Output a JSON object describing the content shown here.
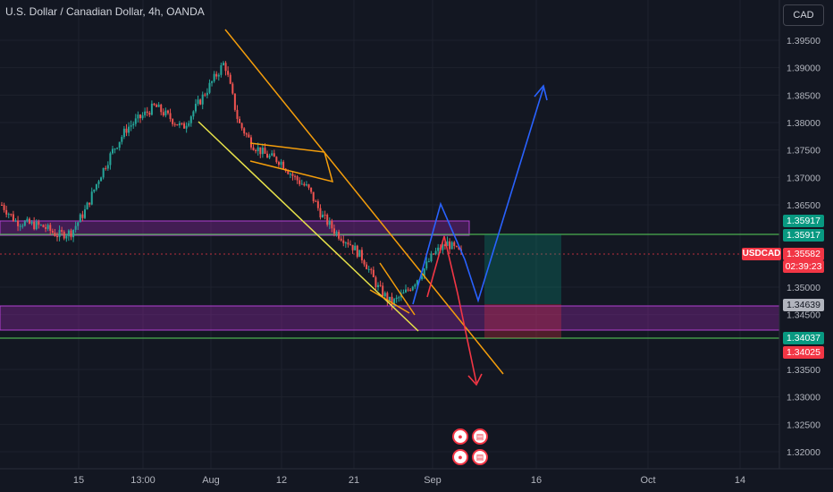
{
  "header": {
    "title": "U.S. Dollar / Canadian Dollar, 4h, OANDA",
    "currency_button": "CAD"
  },
  "symbol_badge": "USDCAD",
  "price_badges": [
    {
      "price": "1.35917",
      "bg": "#089981",
      "fg": "#ffffff"
    },
    {
      "price": "1.35917",
      "bg": "#089981",
      "fg": "#ffffff"
    },
    {
      "price": "1.35582",
      "bg": "#f23645",
      "fg": "#ffffff"
    },
    {
      "price": "02:39:23",
      "bg": "#f23645",
      "fg": "#ffffff"
    },
    {
      "price": "1.34639",
      "bg": "#b2b5be",
      "fg": "#131722"
    },
    {
      "price": "1.34037",
      "bg": "#089981",
      "fg": "#ffffff"
    },
    {
      "price": "1.34025",
      "bg": "#f23645",
      "fg": "#ffffff"
    }
  ],
  "event_icons": [
    "ca-flag-icon",
    "us-flag-icon",
    "ca-flag-icon",
    "us-flag-icon"
  ],
  "chart_data": {
    "type": "line",
    "title": "U.S. Dollar / Canadian Dollar, 4h, OANDA",
    "y_ticks": [
      "1.39500",
      "1.39000",
      "1.38500",
      "1.38000",
      "1.37500",
      "1.37000",
      "1.36500",
      "1.35000",
      "1.34500",
      "1.33500",
      "1.33000",
      "1.32500",
      "1.32000"
    ],
    "x_ticks": [
      "15",
      "13:00",
      "Aug",
      "12",
      "21",
      "Sep",
      "16",
      "Oct",
      "14"
    ],
    "ylim": [
      1.3185,
      1.3985
    ],
    "series": [
      {
        "values": [
          1.365,
          1.362,
          1.3615,
          1.361,
          1.3595,
          1.36,
          1.364,
          1.37,
          1.375,
          1.379,
          1.381,
          1.383,
          1.381,
          1.379,
          1.383,
          1.387,
          1.391,
          1.38,
          1.376,
          1.374,
          1.373,
          1.37,
          1.368,
          1.363,
          1.36,
          1.358,
          1.355,
          1.35,
          1.347,
          1.349,
          1.352,
          1.356,
          1.358,
          1.356
        ]
      }
    ],
    "colors": {
      "up": "#26a69a",
      "down": "#ef5350",
      "orange": "#f59e0b",
      "yellow": "#e8e34a",
      "blue": "#2962ff",
      "red": "#f23645",
      "purple": "#9c27b0",
      "green": "#4caf50"
    }
  }
}
